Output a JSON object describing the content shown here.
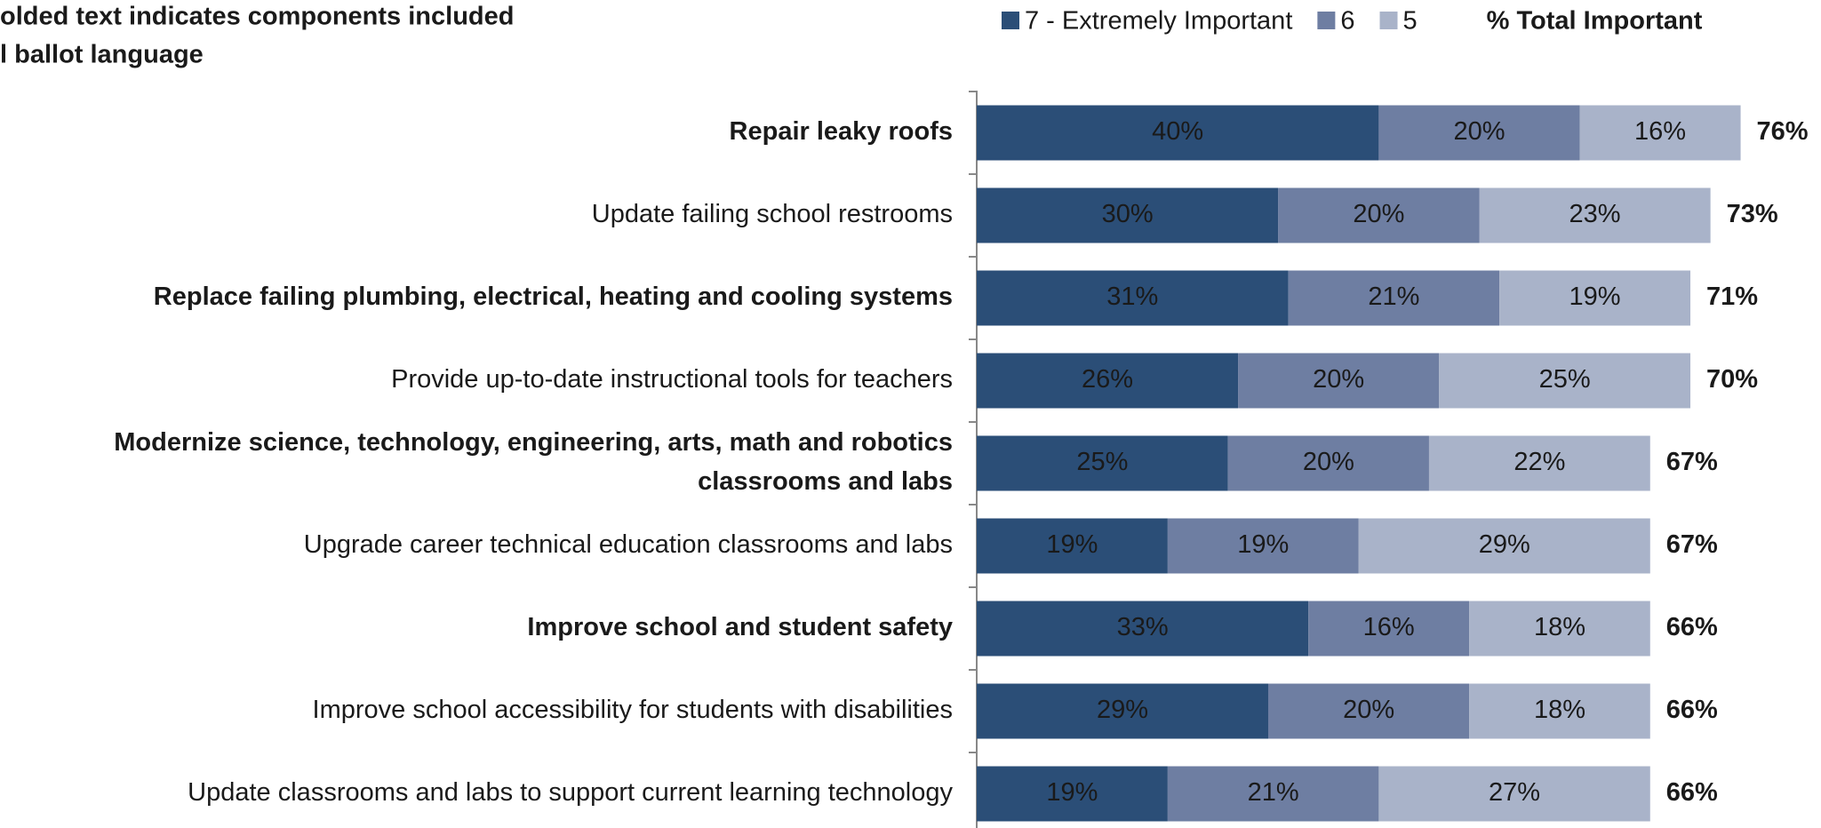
{
  "chart_data": {
    "type": "stacked-bar-horizontal",
    "title": [
      "olded text indicates components included",
      "l ballot language"
    ],
    "categories": [
      "Repair leaky roofs",
      "Update failing school restrooms",
      "Replace failing plumbing, electrical, heating and cooling systems",
      "Provide up-to-date instructional tools for teachers",
      [
        "Modernize science, technology, engineering, arts, math and robotics",
        "classrooms and labs"
      ],
      "Upgrade career technical education classrooms and labs",
      "Improve school and student safety",
      "Improve school accessibility for students with disabilities",
      "Update classrooms and labs to support current learning technology"
    ],
    "bold": [
      true,
      false,
      true,
      false,
      true,
      false,
      true,
      false,
      false
    ],
    "series": [
      {
        "name": "7 - Extremely Important",
        "color": "#2b4e77",
        "label_color": "#ffffff",
        "values": [
          40,
          30,
          31,
          26,
          25,
          19,
          33,
          29,
          19
        ],
        "value_labels": [
          "40%",
          "30%",
          "31%",
          "26%",
          "25%",
          "19%",
          "33%",
          "29%",
          "19%"
        ]
      },
      {
        "name": "6",
        "color": "#6e7ea2",
        "label_color": "#1a1a1a",
        "values": [
          20,
          20,
          21,
          20,
          20,
          19,
          16,
          20,
          21
        ],
        "value_labels": [
          "20%",
          "20%",
          "21%",
          "20%",
          "20%",
          "19%",
          "16%",
          "20%",
          "21%"
        ]
      },
      {
        "name": "5",
        "color": "#a9b3c9",
        "label_color": "#1a1a1a",
        "values": [
          16,
          23,
          19,
          25,
          22,
          29,
          18,
          18,
          27
        ],
        "value_labels": [
          "16%",
          "23%",
          "19%",
          "25%",
          "22%",
          "29%",
          "18%",
          "18%",
          "27%"
        ]
      }
    ],
    "totals": {
      "name": "% Total Important",
      "values": [
        76,
        73,
        71,
        70,
        67,
        67,
        66,
        66,
        66
      ],
      "value_labels": [
        "76%",
        "73%",
        "71%",
        "70%",
        "67%",
        "67%",
        "66%",
        "66%",
        "66%"
      ]
    }
  }
}
